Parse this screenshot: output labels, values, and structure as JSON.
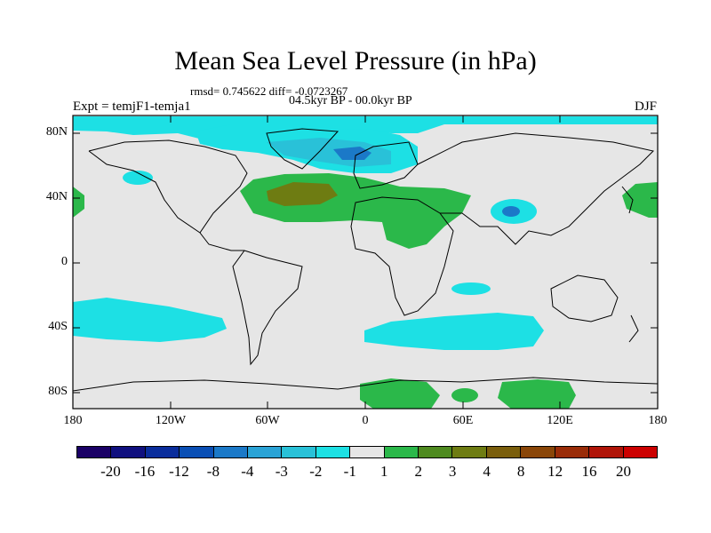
{
  "title": "Mean Sea Level Pressure (in hPa)",
  "stats": "rmsd= 0.745622 diff= -0.0723267",
  "period": "04.5kyr BP - 00.0kyr BP",
  "experiment": "Expt = temjF1-temja1",
  "season": "DJF",
  "y_ticks": [
    "80N",
    "40N",
    "0",
    "40S",
    "80S"
  ],
  "x_ticks": [
    "180",
    "120W",
    "60W",
    "0",
    "60E",
    "120E",
    "180"
  ],
  "colorbar": {
    "colors": [
      "#1a0066",
      "#10107f",
      "#0a2d9c",
      "#0a4fb5",
      "#1b79c8",
      "#2aa3d6",
      "#29c1d8",
      "#1de0e4",
      "#e6e6e6",
      "#2bb84a",
      "#4e8a1f",
      "#6e7c12",
      "#7a5e0c",
      "#8a4608",
      "#9a2c08",
      "#b01408",
      "#cc0000"
    ],
    "labels": [
      "-20",
      "-16",
      "-12",
      "-8",
      "-4",
      "-3",
      "-2",
      "-1",
      "1",
      "2",
      "3",
      "4",
      "8",
      "12",
      "16",
      "20"
    ]
  },
  "colors": {
    "neutral": "#e6e6e6",
    "cyan": "#1de0e4",
    "blue_mid": "#29c1d8",
    "blue_dark": "#1b79c8",
    "green": "#2bb84a",
    "olive": "#6e7c12"
  }
}
